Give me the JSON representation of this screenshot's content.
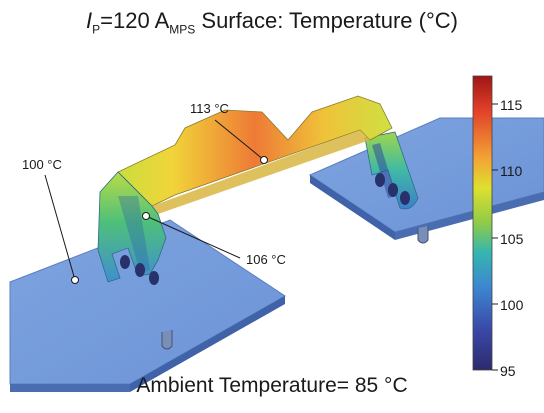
{
  "title": {
    "symbol": "I",
    "symbol_sub": "P",
    "value": "=120 A",
    "unit_sub": "MPS",
    "text": " Surface: Temperature (°C)"
  },
  "caption": "Ambient Temperature= 85 °C",
  "callouts": {
    "top": "113 °C",
    "left": "100 °C",
    "mid": "106 °C"
  },
  "colorbar": {
    "ticks": [
      "115",
      "110",
      "105",
      "100",
      "95"
    ],
    "colors": [
      "#a01515",
      "#e2422a",
      "#f3a335",
      "#dfe02f",
      "#8ecb48",
      "#35b6b0",
      "#3c86d0",
      "#3a4aa8",
      "#2c2a6e"
    ]
  }
}
